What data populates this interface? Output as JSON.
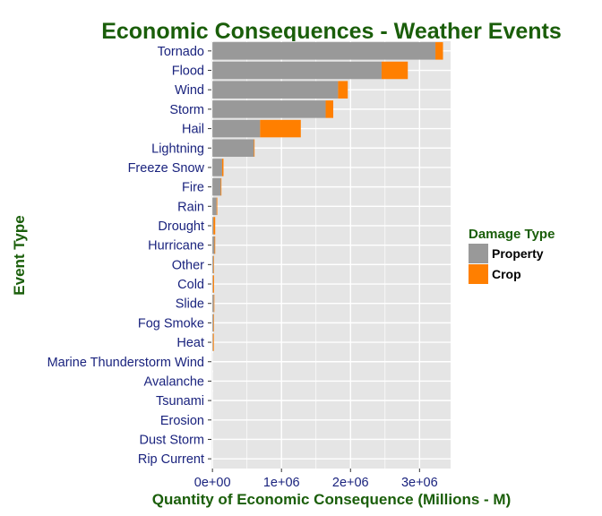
{
  "colors": {
    "panel_background": "#e5e5e5",
    "grid": "#ffffff",
    "title": "#1a5e0a",
    "category_text": "#1a237e",
    "property": "#999999",
    "crop": "#ff7f00"
  },
  "chart_data": {
    "type": "bar",
    "orientation": "horizontal",
    "stacked": true,
    "title": "Economic Consequences - Weather Events",
    "xlabel": "Quantity of Economic Consequence (Millions - M)",
    "ylabel": "Event Type",
    "xlim": [
      -15000,
      3450000
    ],
    "xticks": [
      {
        "value": 0,
        "label": "0e+00"
      },
      {
        "value": 1000000,
        "label": "1e+06"
      },
      {
        "value": 2000000,
        "label": "2e+06"
      },
      {
        "value": 3000000,
        "label": "3e+06"
      }
    ],
    "grid": true,
    "legend": {
      "title": "Damage Type",
      "position": "right",
      "entries": [
        "Property",
        "Crop"
      ]
    },
    "categories": [
      "Tornado",
      "Flood",
      "Wind",
      "Storm",
      "Hail",
      "Lightning",
      "Freeze Snow",
      "Fire",
      "Rain",
      "Drought",
      "Hurricane",
      "Other",
      "Cold",
      "Slide",
      "Fog Smoke",
      "Heat",
      "Marine Thunderstorm Wind",
      "Avalanche",
      "Tsunami",
      "Erosion",
      "Dust Storm",
      "Rip Current"
    ],
    "series": [
      {
        "name": "Property",
        "values": [
          3230000,
          2450000,
          1820000,
          1640000,
          690000,
          600000,
          140000,
          120000,
          60000,
          15000,
          30000,
          15000,
          8000,
          20000,
          15000,
          8000,
          1500,
          1000,
          800,
          500,
          400,
          200
        ]
      },
      {
        "name": "Crop",
        "values": [
          110000,
          380000,
          140000,
          110000,
          590000,
          10000,
          20000,
          10000,
          10000,
          25000,
          10000,
          5000,
          15000,
          2000,
          1000,
          12000,
          0,
          0,
          0,
          0,
          0,
          0
        ]
      }
    ]
  }
}
